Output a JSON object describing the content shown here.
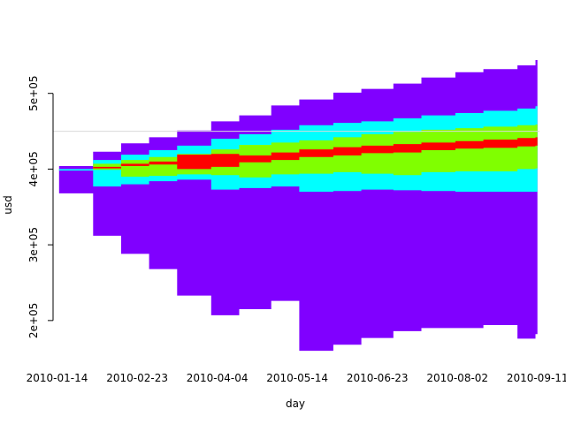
{
  "chart_data": {
    "type": "area",
    "title": "",
    "xlabel": "day",
    "ylabel": "usd",
    "x_ticks": [
      "2010-01-14",
      "2010-02-23",
      "2010-04-04",
      "2010-05-14",
      "2010-06-23",
      "2010-08-02",
      "2010-09-11"
    ],
    "y_ticks": [
      {
        "value": 200000,
        "label": "2e+05"
      },
      {
        "value": 300000,
        "label": "3e+05"
      },
      {
        "value": 400000,
        "label": "4e+05"
      },
      {
        "value": 500000,
        "label": "5e+05"
      }
    ],
    "xlim": [
      "2010-01-12",
      "2010-09-12"
    ],
    "ylim": [
      145000,
      565000
    ],
    "reference_line": {
      "value": 450000,
      "color": "#d9d9d9"
    },
    "grid": false,
    "x": [
      "2010-01-15",
      "2010-02-01",
      "2010-02-15",
      "2010-03-01",
      "2010-03-15",
      "2010-04-01",
      "2010-04-15",
      "2010-05-01",
      "2010-05-15",
      "2010-06-01",
      "2010-06-15",
      "2010-07-01",
      "2010-07-15",
      "2010-08-01",
      "2010-08-15",
      "2010-09-01",
      "2010-09-10"
    ],
    "series": [
      {
        "color": "#8000ff",
        "upper": [
          404000,
          423000,
          434000,
          442000,
          451000,
          463000,
          471000,
          484000,
          492000,
          501000,
          506000,
          513000,
          521000,
          528000,
          532000,
          537000,
          544000
        ],
        "lower": [
          368000,
          312000,
          288000,
          268000,
          233000,
          207000,
          215000,
          226000,
          160000,
          168000,
          177000,
          186000,
          190000,
          190000,
          194000,
          176000,
          182000
        ]
      },
      {
        "color": "#00ffff",
        "upper": [
          400000,
          412000,
          419000,
          425000,
          431000,
          440000,
          446000,
          452000,
          458000,
          461000,
          463000,
          467000,
          471000,
          474000,
          477000,
          480000,
          483000
        ],
        "lower": [
          398000,
          377000,
          380000,
          384000,
          386000,
          373000,
          375000,
          377000,
          370000,
          371000,
          373000,
          372000,
          371000,
          370000,
          370000,
          370000,
          370000
        ]
      },
      {
        "color": "#80ff00",
        "upper": [
          399000,
          407000,
          412000,
          416000,
          420000,
          426000,
          432000,
          435000,
          438000,
          442000,
          446000,
          449000,
          452000,
          454000,
          456000,
          458000,
          459000
        ],
        "lower": [
          399000,
          399000,
          390000,
          391000,
          393000,
          392000,
          389000,
          393000,
          394000,
          396000,
          394000,
          392000,
          396000,
          397000,
          397000,
          400000,
          401000
        ]
      },
      {
        "color": "#ff0000",
        "upper": [
          398000,
          403000,
          407000,
          410000,
          419000,
          420000,
          418000,
          422000,
          426000,
          429000,
          431000,
          433000,
          435000,
          437000,
          439000,
          441000,
          442000
        ],
        "lower": [
          398000,
          401000,
          404000,
          406000,
          400000,
          403000,
          409000,
          412000,
          416000,
          418000,
          421000,
          422000,
          425000,
          427000,
          428000,
          430000,
          431000
        ]
      }
    ]
  }
}
